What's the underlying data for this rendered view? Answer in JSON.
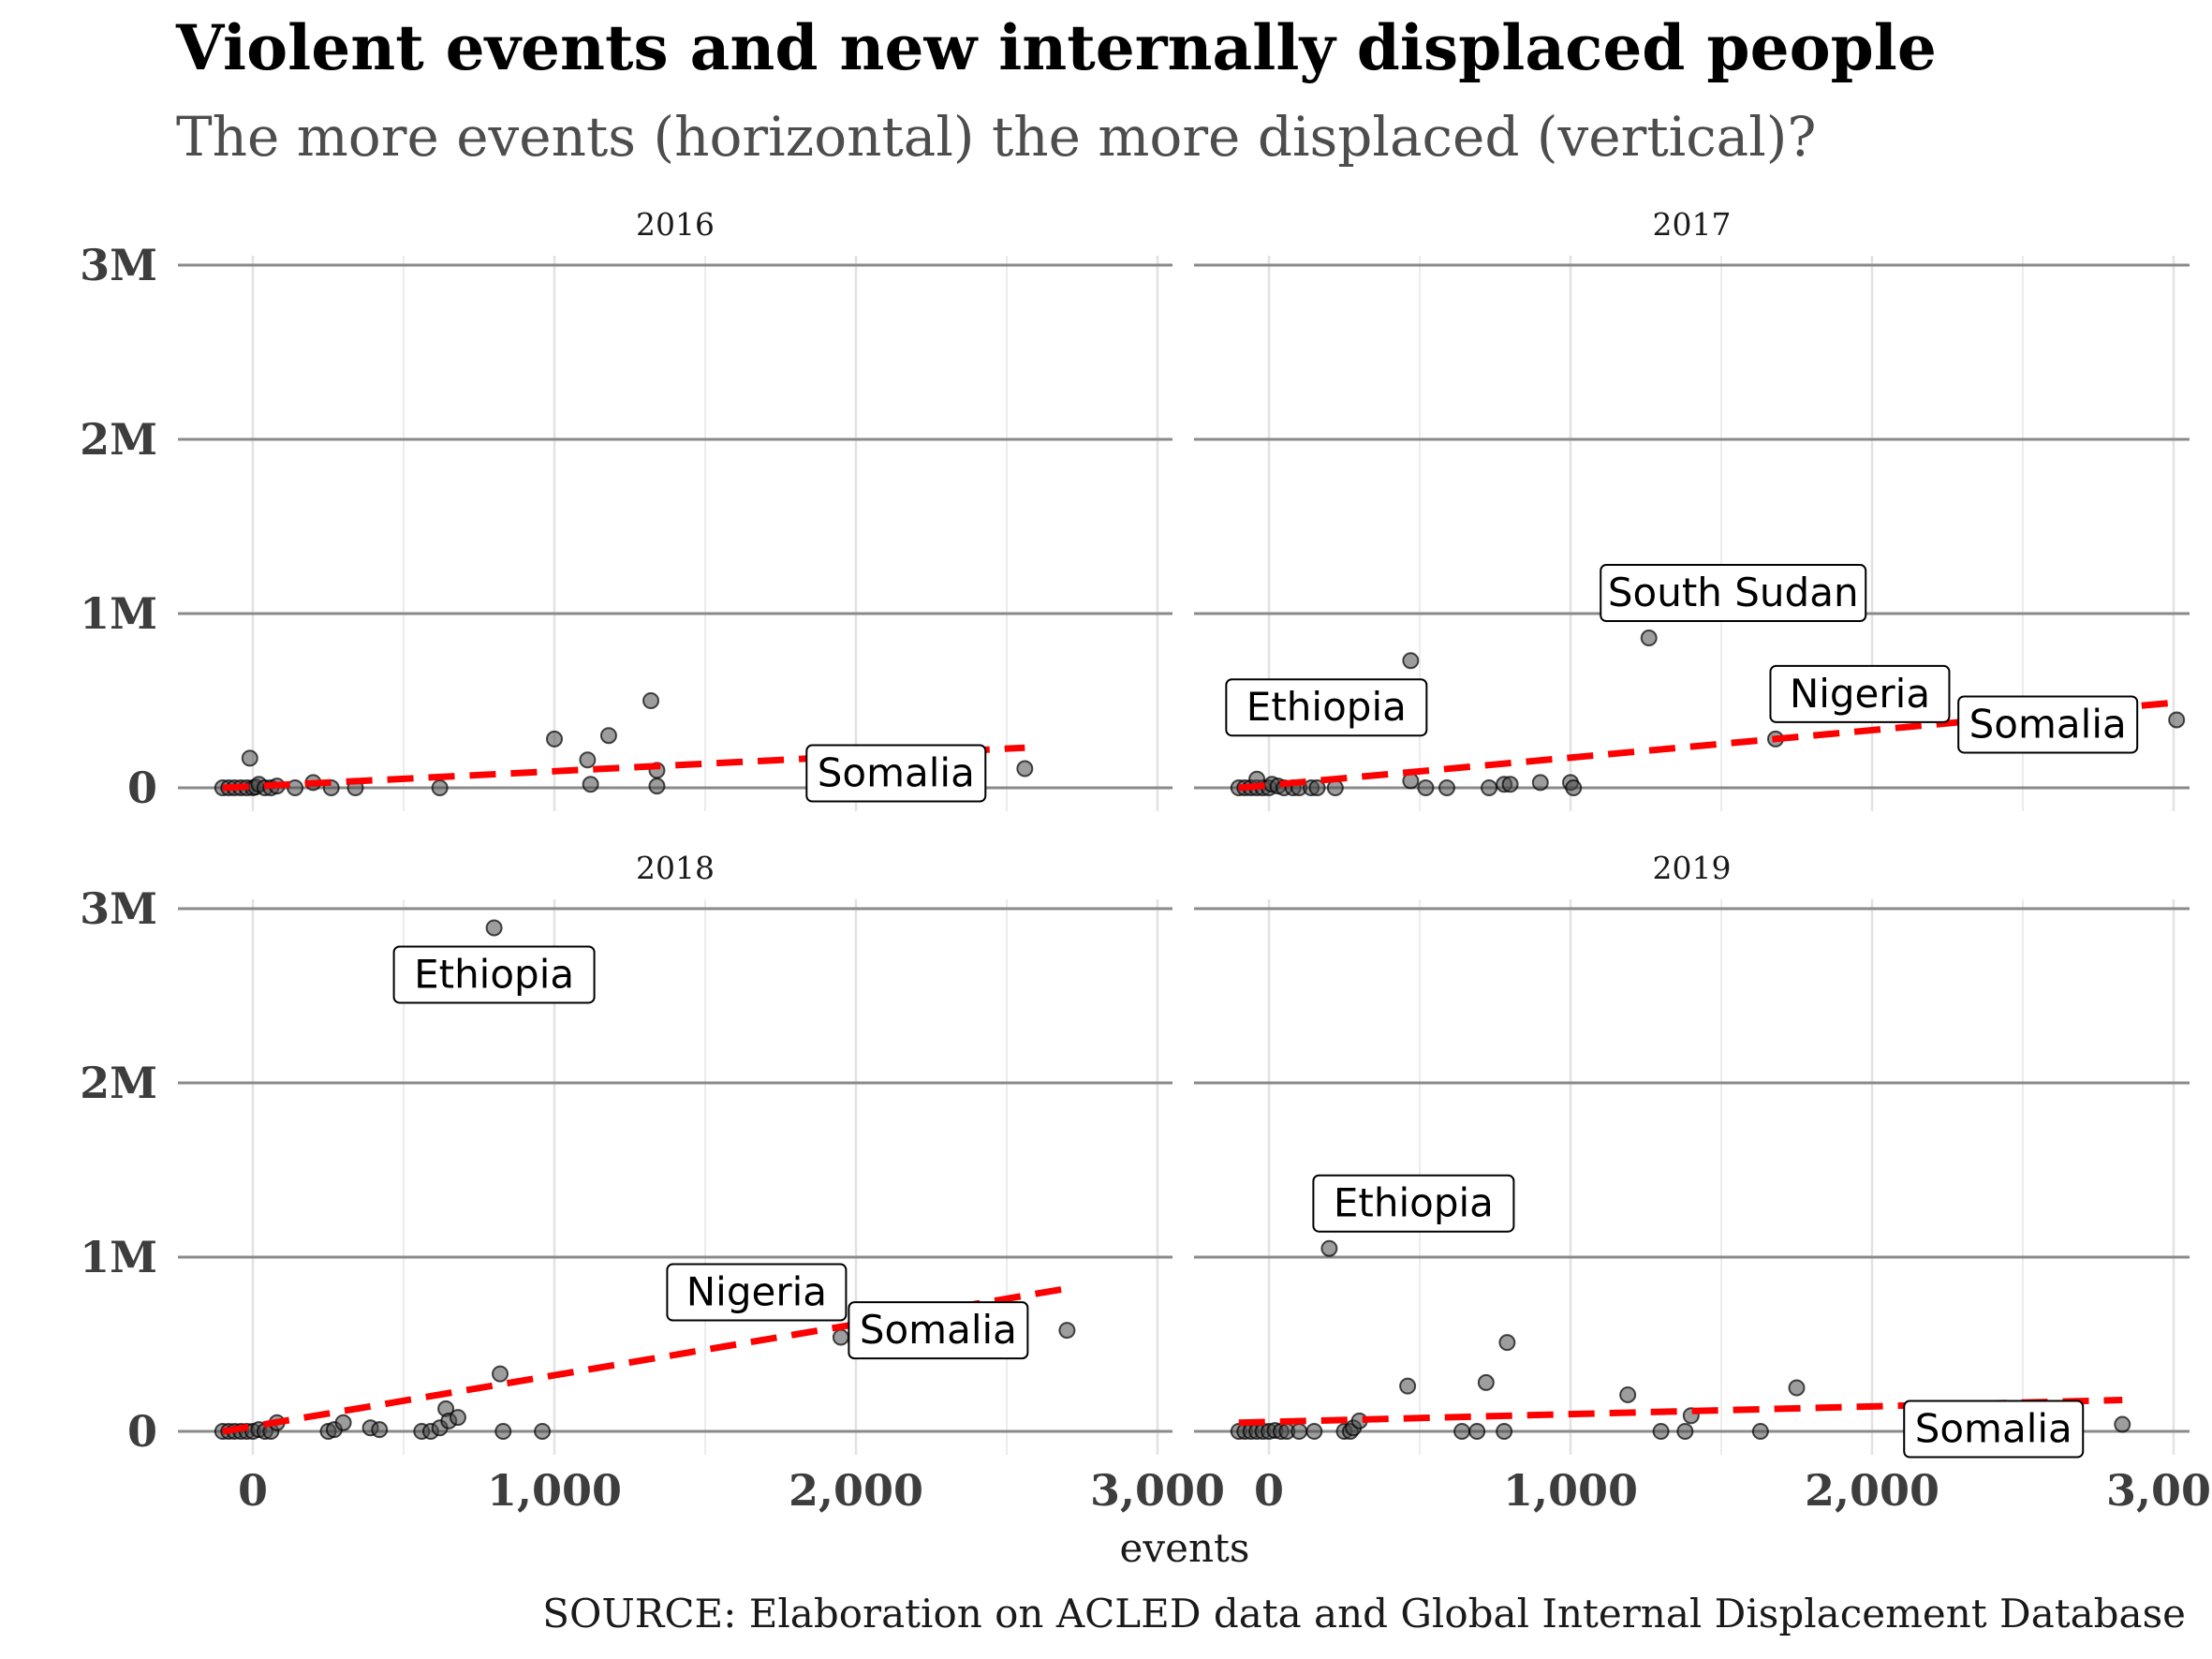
{
  "chart_data": {
    "type": "scatter",
    "title": "Violent events and new internally displaced people",
    "subtitle": "The more events (horizontal) the more displaced (vertical)?",
    "xlabel": "events",
    "ylabel": "",
    "caption": "SOURCE: Elaboration on ACLED data and Global Internal Displacement Database",
    "xlim": [
      -120,
      3080
    ],
    "ylim": [
      0,
      3000000
    ],
    "xticks": [
      0,
      1000,
      2000,
      3000
    ],
    "xtick_labels": [
      "0",
      "1,000",
      "2,000",
      "3,000"
    ],
    "yticks": [
      0,
      1000000,
      2000000,
      3000000
    ],
    "ytick_labels": [
      "0",
      "1M",
      "2M",
      "3M"
    ],
    "grid": true,
    "point_color": "#4d4d4d",
    "trend_color": "#ff0000",
    "panels": [
      {
        "facet": "2016",
        "points": [
          [
            -100,
            0
          ],
          [
            -80,
            0
          ],
          [
            -60,
            0
          ],
          [
            -40,
            0
          ],
          [
            -20,
            0
          ],
          [
            0,
            0
          ],
          [
            10,
            5000
          ],
          [
            20,
            20000
          ],
          [
            40,
            0
          ],
          [
            60,
            0
          ],
          [
            -10,
            170000
          ],
          [
            80,
            10000
          ],
          [
            140,
            0
          ],
          [
            200,
            30000
          ],
          [
            260,
            0
          ],
          [
            340,
            0
          ],
          [
            620,
            0
          ],
          [
            1000,
            280000
          ],
          [
            1110,
            160000
          ],
          [
            1120,
            20000
          ],
          [
            1180,
            300000
          ],
          [
            1320,
            500000
          ],
          [
            1340,
            100000
          ],
          [
            1340,
            10000
          ],
          [
            2560,
            110000
          ]
        ],
        "trend": [
          [
            -100,
            0
          ],
          [
            2560,
            230000
          ]
        ],
        "labels": [
          {
            "text": "Somalia",
            "x": 2560,
            "y": 110000
          }
        ]
      },
      {
        "facet": "2017",
        "points": [
          [
            -100,
            0
          ],
          [
            -80,
            0
          ],
          [
            -60,
            0
          ],
          [
            -40,
            0
          ],
          [
            -20,
            0
          ],
          [
            0,
            0
          ],
          [
            10,
            20000
          ],
          [
            30,
            10000
          ],
          [
            50,
            0
          ],
          [
            80,
            0
          ],
          [
            100,
            0
          ],
          [
            140,
            0
          ],
          [
            160,
            0
          ],
          [
            220,
            0
          ],
          [
            -40,
            50000
          ],
          [
            470,
            40000
          ],
          [
            520,
            0
          ],
          [
            590,
            0
          ],
          [
            730,
            0
          ],
          [
            780,
            20000
          ],
          [
            800,
            20000
          ],
          [
            900,
            30000
          ],
          [
            1000,
            30000
          ],
          [
            1010,
            0
          ],
          [
            470,
            730000
          ],
          [
            1260,
            860000
          ],
          [
            1680,
            280000
          ],
          [
            3010,
            390000
          ]
        ],
        "trend": [
          [
            -100,
            0
          ],
          [
            3010,
            490000
          ]
        ],
        "labels": [
          {
            "text": "Ethiopia",
            "x": 470,
            "y": 730000
          },
          {
            "text": "South Sudan",
            "x": 1260,
            "y": 860000
          },
          {
            "text": "Nigeria",
            "x": 1680,
            "y": 280000
          },
          {
            "text": "Somalia",
            "x": 3010,
            "y": 390000
          }
        ]
      },
      {
        "facet": "2018",
        "points": [
          [
            -100,
            0
          ],
          [
            -80,
            0
          ],
          [
            -60,
            0
          ],
          [
            -40,
            0
          ],
          [
            -20,
            0
          ],
          [
            0,
            0
          ],
          [
            20,
            10000
          ],
          [
            40,
            0
          ],
          [
            60,
            0
          ],
          [
            80,
            50000
          ],
          [
            250,
            0
          ],
          [
            270,
            10000
          ],
          [
            300,
            50000
          ],
          [
            390,
            20000
          ],
          [
            420,
            10000
          ],
          [
            560,
            0
          ],
          [
            590,
            0
          ],
          [
            620,
            20000
          ],
          [
            640,
            130000
          ],
          [
            650,
            60000
          ],
          [
            680,
            80000
          ],
          [
            820,
            330000
          ],
          [
            830,
            0
          ],
          [
            960,
            0
          ],
          [
            1950,
            540000
          ],
          [
            2700,
            580000
          ],
          [
            800,
            2890000
          ]
        ],
        "trend": [
          [
            -100,
            0
          ],
          [
            2700,
            820000
          ]
        ],
        "labels": [
          {
            "text": "Ethiopia",
            "x": 800,
            "y": 2890000
          },
          {
            "text": "Nigeria",
            "x": 1950,
            "y": 540000
          },
          {
            "text": "Somalia",
            "x": 2700,
            "y": 580000
          }
        ]
      },
      {
        "facet": "2019",
        "points": [
          [
            -100,
            0
          ],
          [
            -80,
            0
          ],
          [
            -60,
            0
          ],
          [
            -40,
            0
          ],
          [
            -20,
            0
          ],
          [
            0,
            0
          ],
          [
            20,
            5000
          ],
          [
            40,
            0
          ],
          [
            60,
            0
          ],
          [
            100,
            0
          ],
          [
            150,
            0
          ],
          [
            250,
            0
          ],
          [
            270,
            0
          ],
          [
            280,
            20000
          ],
          [
            300,
            60000
          ],
          [
            460,
            260000
          ],
          [
            640,
            0
          ],
          [
            690,
            0
          ],
          [
            720,
            280000
          ],
          [
            780,
            0
          ],
          [
            790,
            510000
          ],
          [
            1190,
            210000
          ],
          [
            1300,
            0
          ],
          [
            1380,
            0
          ],
          [
            1400,
            90000
          ],
          [
            1630,
            0
          ],
          [
            1750,
            250000
          ],
          [
            200,
            1050000
          ],
          [
            2830,
            40000
          ]
        ],
        "trend": [
          [
            -100,
            50000
          ],
          [
            2830,
            180000
          ]
        ],
        "labels": [
          {
            "text": "Ethiopia",
            "x": 200,
            "y": 1050000
          },
          {
            "text": "Somalia",
            "x": 2830,
            "y": 40000
          }
        ]
      }
    ]
  }
}
